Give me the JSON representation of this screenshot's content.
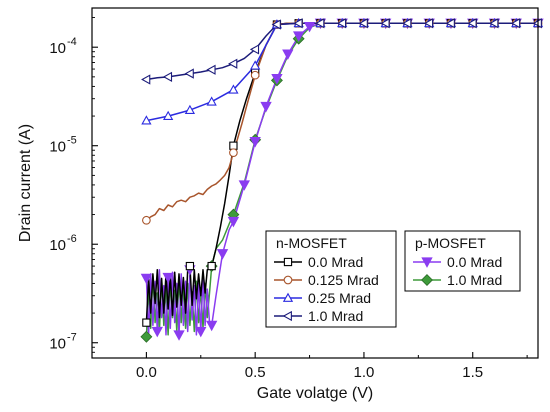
{
  "chart_data": {
    "type": "line",
    "title": "",
    "xlabel": "Gate volatge (V)",
    "ylabel": "Drain current (A)",
    "xlim": [
      -0.25,
      1.8
    ],
    "ylim": [
      7e-08,
      0.00025
    ],
    "yscale": "log",
    "grid": false,
    "x_ticks": [
      {
        "value": 0.0,
        "label": "0.0"
      },
      {
        "value": 0.5,
        "label": "0.5"
      },
      {
        "value": 1.0,
        "label": "1.0"
      },
      {
        "value": 1.5,
        "label": "1.5"
      }
    ],
    "y_ticks": [
      {
        "value": 1e-07,
        "base": "10",
        "exp": "-7"
      },
      {
        "value": 1e-06,
        "base": "10",
        "exp": "-6"
      },
      {
        "value": 1e-05,
        "base": "10",
        "exp": "-5"
      },
      {
        "value": 0.0001,
        "base": "10",
        "exp": "-4"
      }
    ],
    "legends": [
      {
        "title": "n-MOSFET",
        "placement": "bottom-center",
        "entries": [
          "0.0 Mrad",
          "0.125 Mrad",
          "0.25 Mrad",
          "1.0 Mrad"
        ]
      },
      {
        "title": "p-MOSFET",
        "placement": "bottom-right",
        "entries": [
          "0.0 Mrad",
          "1.0 Mrad"
        ]
      }
    ],
    "series": [
      {
        "name": "0.0 Mrad",
        "group": "n-MOSFET",
        "color": "#000000",
        "marker": "square",
        "x": [
          0.0,
          0.01,
          0.02,
          0.03,
          0.04,
          0.05,
          0.06,
          0.07,
          0.08,
          0.09,
          0.1,
          0.11,
          0.12,
          0.13,
          0.14,
          0.15,
          0.16,
          0.17,
          0.18,
          0.19,
          0.2,
          0.21,
          0.22,
          0.23,
          0.24,
          0.25,
          0.26,
          0.27,
          0.28,
          0.29,
          0.3,
          0.32,
          0.34,
          0.36,
          0.38,
          0.4,
          0.43,
          0.46,
          0.5,
          0.55,
          0.6,
          0.65,
          0.7,
          0.75,
          0.8,
          0.9,
          1.0,
          1.1,
          1.2,
          1.3,
          1.4,
          1.5,
          1.6,
          1.7,
          1.8
        ],
        "y": [
          1.6e-07,
          4.5e-07,
          2e-07,
          5e-07,
          2.5e-07,
          5.5e-07,
          1.8e-07,
          4.5e-07,
          2e-07,
          5e-07,
          2.2e-07,
          4.8e-07,
          1.9e-07,
          5.2e-07,
          2.3e-07,
          5e-07,
          2.4e-07,
          4.6e-07,
          2e-07,
          5.5e-07,
          6e-07,
          2.4e-07,
          5.5e-07,
          2.8e-07,
          5e-07,
          3e-07,
          5.5e-07,
          3.2e-07,
          5.5e-07,
          5.8e-07,
          6e-07,
          9e-07,
          1.5e-06,
          2.6e-06,
          5e-06,
          1e-05,
          1.8e-05,
          3e-05,
          5.5e-05,
          0.000105,
          0.00017,
          0.000175,
          0.000175,
          0.000175,
          0.000175,
          0.000175,
          0.000175,
          0.000175,
          0.000175,
          0.000175,
          0.000175,
          0.000175,
          0.000175,
          0.000175,
          0.000175
        ],
        "marker_x": [
          0.0,
          0.2,
          0.3,
          0.4,
          0.5,
          0.6,
          0.7,
          0.8,
          0.9,
          1.0,
          1.1,
          1.2,
          1.3,
          1.4,
          1.5,
          1.6,
          1.7,
          1.8
        ]
      },
      {
        "name": "0.125 Mrad",
        "group": "n-MOSFET",
        "color": "#a8552c",
        "marker": "circle",
        "x": [
          0.0,
          0.02,
          0.04,
          0.06,
          0.08,
          0.1,
          0.12,
          0.14,
          0.16,
          0.18,
          0.2,
          0.22,
          0.24,
          0.26,
          0.28,
          0.3,
          0.32,
          0.34,
          0.36,
          0.38,
          0.4,
          0.42,
          0.44,
          0.46,
          0.48,
          0.5,
          0.55,
          0.6,
          0.65,
          0.7,
          0.75,
          0.8,
          0.9,
          1.0,
          1.1,
          1.2,
          1.3,
          1.4,
          1.5,
          1.6,
          1.7,
          1.8
        ],
        "y": [
          1.75e-06,
          1.9e-06,
          2e-06,
          2.3e-06,
          2.2e-06,
          2.5e-06,
          2.4e-06,
          2.7e-06,
          2.8e-06,
          2.7e-06,
          3e-06,
          3.1e-06,
          3.3e-06,
          3.2e-06,
          3.6e-06,
          3.9e-06,
          4.1e-06,
          4.5e-06,
          5e-06,
          6e-06,
          8.5e-06,
          1.2e-05,
          1.7e-05,
          2.5e-05,
          3.6e-05,
          5.2e-05,
          0.000105,
          0.00017,
          0.000175,
          0.000175,
          0.000175,
          0.000175,
          0.000175,
          0.000175,
          0.000175,
          0.000175,
          0.000175,
          0.000175,
          0.000175,
          0.000175,
          0.000175,
          0.000175
        ],
        "marker_x": [
          0.0,
          0.4,
          0.5,
          0.6,
          0.7,
          0.8,
          0.9,
          1.0,
          1.1,
          1.2,
          1.3,
          1.4,
          1.5,
          1.6,
          1.7,
          1.8
        ]
      },
      {
        "name": "0.25 Mrad",
        "group": "n-MOSFET",
        "color": "#2b2be0",
        "marker": "triangle-up",
        "x": [
          0.0,
          0.1,
          0.2,
          0.3,
          0.4,
          0.5,
          0.55,
          0.6,
          0.7,
          0.8,
          0.9,
          1.0,
          1.1,
          1.2,
          1.3,
          1.4,
          1.5,
          1.6,
          1.7,
          1.8
        ],
        "y": [
          1.8e-05,
          2e-05,
          2.3e-05,
          2.8e-05,
          3.7e-05,
          6.5e-05,
          0.000105,
          0.00017,
          0.000175,
          0.000175,
          0.000175,
          0.000175,
          0.000175,
          0.000175,
          0.000175,
          0.000175,
          0.000175,
          0.000175,
          0.000175,
          0.000175
        ],
        "marker_x": [
          0.0,
          0.1,
          0.2,
          0.3,
          0.4,
          0.5,
          0.6,
          0.7,
          0.8,
          0.9,
          1.0,
          1.1,
          1.2,
          1.3,
          1.4,
          1.5,
          1.6,
          1.7,
          1.8
        ]
      },
      {
        "name": "1.0 Mrad",
        "group": "n-MOSFET",
        "color": "#1c1c7a",
        "marker": "triangle-left",
        "x": [
          0.0,
          0.05,
          0.1,
          0.15,
          0.2,
          0.25,
          0.3,
          0.35,
          0.4,
          0.45,
          0.5,
          0.55,
          0.6,
          0.7,
          0.8,
          0.9,
          1.0,
          1.1,
          1.2,
          1.3,
          1.4,
          1.5,
          1.6,
          1.7,
          1.8
        ],
        "y": [
          4.7e-05,
          4.9e-05,
          5e-05,
          5.2e-05,
          5.4e-05,
          5.6e-05,
          5.9e-05,
          6.2e-05,
          6.8e-05,
          7.7e-05,
          9.5e-05,
          0.00013,
          0.00017,
          0.000175,
          0.000175,
          0.000175,
          0.000175,
          0.000175,
          0.000175,
          0.000175,
          0.000175,
          0.000175,
          0.000175,
          0.000175,
          0.000175
        ],
        "marker_x": [
          0.0,
          0.1,
          0.2,
          0.3,
          0.4,
          0.5,
          0.6,
          0.7,
          0.8,
          0.9,
          1.0,
          1.1,
          1.2,
          1.3,
          1.4,
          1.5,
          1.6,
          1.7,
          1.8
        ]
      },
      {
        "name": "0.0 Mrad",
        "group": "p-MOSFET",
        "color": "#8a3cf0",
        "marker": "triangle-down",
        "x": [
          0.0,
          0.01,
          0.02,
          0.03,
          0.04,
          0.05,
          0.06,
          0.07,
          0.08,
          0.09,
          0.1,
          0.11,
          0.12,
          0.13,
          0.14,
          0.15,
          0.16,
          0.17,
          0.18,
          0.19,
          0.2,
          0.21,
          0.22,
          0.23,
          0.24,
          0.25,
          0.26,
          0.27,
          0.28,
          0.29,
          0.3,
          0.32,
          0.35,
          0.38,
          0.4,
          0.45,
          0.5,
          0.55,
          0.6,
          0.65,
          0.7,
          0.75,
          0.8,
          0.9,
          1.0,
          1.1,
          1.2,
          1.3,
          1.4,
          1.5,
          1.6,
          1.7,
          1.8
        ],
        "y": [
          4.5e-07,
          1.2e-07,
          5e-07,
          1.5e-07,
          4.2e-07,
          1.3e-07,
          5.5e-07,
          1.8e-07,
          3.8e-07,
          1.2e-07,
          4.6e-07,
          1.4e-07,
          5.2e-07,
          1.6e-07,
          4e-07,
          1.2e-07,
          5e-07,
          1.5e-07,
          4.2e-07,
          1.3e-07,
          5.5e-07,
          1.7e-07,
          3.8e-07,
          1.2e-07,
          4e-07,
          1.3e-07,
          4.6e-07,
          1.5e-07,
          3.5e-07,
          1.6e-07,
          1.5e-07,
          3e-07,
          8e-07,
          1.4e-06,
          1.7e-06,
          4e-06,
          1.1e-05,
          2.5e-05,
          4.8e-05,
          8.5e-05,
          0.00013,
          0.000162,
          0.000175,
          0.000175,
          0.000175,
          0.000175,
          0.000175,
          0.000175,
          0.000175,
          0.000175,
          0.000175,
          0.000175,
          0.000175
        ],
        "marker_x": [
          0.0,
          0.05,
          0.1,
          0.15,
          0.2,
          0.25,
          0.3,
          0.35,
          0.4,
          0.45,
          0.5,
          0.55,
          0.6,
          0.65,
          0.7,
          0.75,
          0.8,
          0.9,
          1.0,
          1.1,
          1.2,
          1.3,
          1.4,
          1.5,
          1.6,
          1.7,
          1.8
        ]
      },
      {
        "name": "1.0 Mrad",
        "group": "p-MOSFET",
        "color": "#3e9a3a",
        "marker": "diamond",
        "x": [
          0.0,
          0.01,
          0.02,
          0.03,
          0.04,
          0.05,
          0.06,
          0.07,
          0.08,
          0.09,
          0.1,
          0.11,
          0.12,
          0.13,
          0.14,
          0.15,
          0.16,
          0.17,
          0.18,
          0.19,
          0.2,
          0.21,
          0.22,
          0.23,
          0.24,
          0.25,
          0.26,
          0.27,
          0.28,
          0.29,
          0.3,
          0.32,
          0.35,
          0.38,
          0.4,
          0.45,
          0.5,
          0.55,
          0.6,
          0.65,
          0.7,
          0.75,
          0.8,
          0.9,
          1.0,
          1.1,
          1.2,
          1.3,
          1.4,
          1.5,
          1.6,
          1.7,
          1.8
        ],
        "y": [
          1.15e-07,
          3.5e-07,
          1.4e-07,
          4.8e-07,
          1.6e-07,
          3.2e-07,
          1.3e-07,
          4.4e-07,
          1.5e-07,
          3.6e-07,
          1.2e-07,
          4.2e-07,
          1.8e-07,
          3.4e-07,
          1.3e-07,
          4.6e-07,
          1.6e-07,
          3.8e-07,
          1.4e-07,
          4e-07,
          1.5e-07,
          3.3e-07,
          1.3e-07,
          4.2e-07,
          1.6e-07,
          3.6e-07,
          1.4e-07,
          4e-07,
          1.8e-07,
          3.2e-07,
          6e-07,
          9e-07,
          1.1e-06,
          1.6e-06,
          2e-06,
          4.2e-06,
          1.15e-05,
          2.4e-05,
          4.6e-05,
          8.2e-05,
          0.000122,
          0.000158,
          0.000175,
          0.000175,
          0.000175,
          0.000175,
          0.000175,
          0.000175,
          0.000175,
          0.000175,
          0.000175,
          0.000175,
          0.000175
        ],
        "marker_x": [
          0.0,
          0.3,
          0.4,
          0.5,
          0.6,
          0.7
        ]
      }
    ]
  }
}
